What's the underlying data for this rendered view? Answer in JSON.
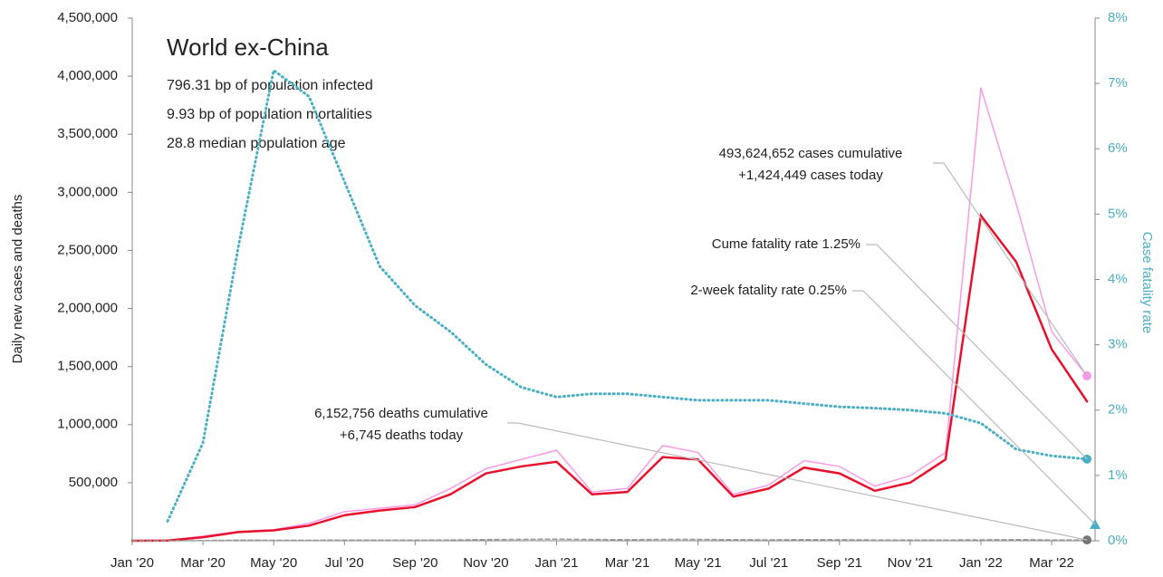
{
  "chart_data": {
    "type": "line",
    "title": "World ex-China",
    "stats": [
      "796.31 bp of population infected",
      "9.93 bp of population mortalities",
      "28.8 median population age"
    ],
    "ylabel": "Daily new cases and deaths",
    "y2label": "Case fatality rate",
    "x": [
      "2020-01",
      "2020-02",
      "2020-03",
      "2020-04",
      "2020-05",
      "2020-06",
      "2020-07",
      "2020-08",
      "2020-09",
      "2020-10",
      "2020-11",
      "2020-12",
      "2021-01",
      "2021-02",
      "2021-03",
      "2021-04",
      "2021-05",
      "2021-06",
      "2021-07",
      "2021-08",
      "2021-09",
      "2021-10",
      "2021-11",
      "2021-12",
      "2022-01",
      "2022-02",
      "2022-03",
      "2022-04"
    ],
    "xticks": [
      {
        "value": "2020-01",
        "label": "Jan '20"
      },
      {
        "value": "2020-03",
        "label": "Mar '20"
      },
      {
        "value": "2020-05",
        "label": "May '20"
      },
      {
        "value": "2020-07",
        "label": "Jul '20"
      },
      {
        "value": "2020-09",
        "label": "Sep '20"
      },
      {
        "value": "2020-11",
        "label": "Nov '20"
      },
      {
        "value": "2021-01",
        "label": "Jan '21"
      },
      {
        "value": "2021-03",
        "label": "Mar '21"
      },
      {
        "value": "2021-05",
        "label": "May '21"
      },
      {
        "value": "2021-07",
        "label": "Jul '21"
      },
      {
        "value": "2021-09",
        "label": "Sep '21"
      },
      {
        "value": "2021-11",
        "label": "Nov '21"
      },
      {
        "value": "2022-01",
        "label": "Jan '22"
      },
      {
        "value": "2022-03",
        "label": "Mar '22"
      }
    ],
    "ylim": [
      0,
      4500000
    ],
    "yticks": [
      {
        "value": 500000,
        "label": "500,000"
      },
      {
        "value": 1000000,
        "label": "1,000,000"
      },
      {
        "value": 1500000,
        "label": "1,500,000"
      },
      {
        "value": 2000000,
        "label": "2,000,000"
      },
      {
        "value": 2500000,
        "label": "2,500,000"
      },
      {
        "value": 3000000,
        "label": "3,000,000"
      },
      {
        "value": 3500000,
        "label": "3,500,000"
      },
      {
        "value": 4000000,
        "label": "4,000,000"
      },
      {
        "value": 4500000,
        "label": "4,500,000"
      }
    ],
    "y2lim": [
      0,
      8
    ],
    "y2ticks": [
      {
        "value": 0,
        "label": "0%"
      },
      {
        "value": 1,
        "label": "1%"
      },
      {
        "value": 2,
        "label": "2%"
      },
      {
        "value": 3,
        "label": "3%"
      },
      {
        "value": 4,
        "label": "4%"
      },
      {
        "value": 5,
        "label": "5%"
      },
      {
        "value": 6,
        "label": "6%"
      },
      {
        "value": 7,
        "label": "7%"
      },
      {
        "value": 8,
        "label": "8%"
      }
    ],
    "series": [
      {
        "color": "#f59be8",
        "width": 1.5,
        "values": [
          0,
          3000,
          40000,
          80000,
          95000,
          150000,
          250000,
          280000,
          310000,
          450000,
          620000,
          700000,
          780000,
          420000,
          450000,
          820000,
          760000,
          400000,
          480000,
          690000,
          640000,
          470000,
          560000,
          760000,
          3900000,
          2900000,
          1800000,
          1420000
        ]
      },
      {
        "color": "#e8112d",
        "width": 2.5,
        "values": [
          0,
          2000,
          30000,
          75000,
          90000,
          130000,
          220000,
          260000,
          290000,
          400000,
          580000,
          640000,
          680000,
          400000,
          420000,
          720000,
          700000,
          380000,
          450000,
          630000,
          580000,
          430000,
          500000,
          700000,
          2800000,
          2400000,
          1650000,
          1200000
        ]
      },
      {
        "color": "#999999",
        "width": 1.5,
        "dash": "5,3",
        "values": [
          0,
          100,
          2000,
          6000,
          5000,
          5000,
          6000,
          6000,
          6000,
          7000,
          10000,
          12000,
          14000,
          11000,
          9000,
          12000,
          12000,
          9000,
          8000,
          10000,
          9000,
          7000,
          7000,
          7000,
          8000,
          10000,
          7000,
          6745
        ]
      },
      {
        "color": "#4aaec4",
        "width": 3,
        "dash": "1,4",
        "axis": "y2",
        "values": [
          null,
          0.3,
          1.5,
          4.5,
          7.2,
          6.8,
          5.5,
          4.2,
          3.6,
          3.2,
          2.7,
          2.35,
          2.2,
          2.25,
          2.25,
          2.2,
          2.15,
          2.15,
          2.15,
          2.1,
          2.05,
          2.03,
          2.0,
          1.95,
          1.8,
          1.4,
          1.3,
          1.25
        ]
      }
    ],
    "annotations": [
      {
        "lines": [
          "493,624,652 cases cumulative",
          "+1,424,449 cases today"
        ]
      },
      {
        "lines": [
          "Cume fatality rate 1.25%"
        ]
      },
      {
        "lines": [
          "2-week fatality rate 0.25%"
        ],
        "value": 0.25
      },
      {
        "lines": [
          "6,152,756 deaths cumulative",
          "+6,745 deaths today"
        ]
      }
    ]
  }
}
